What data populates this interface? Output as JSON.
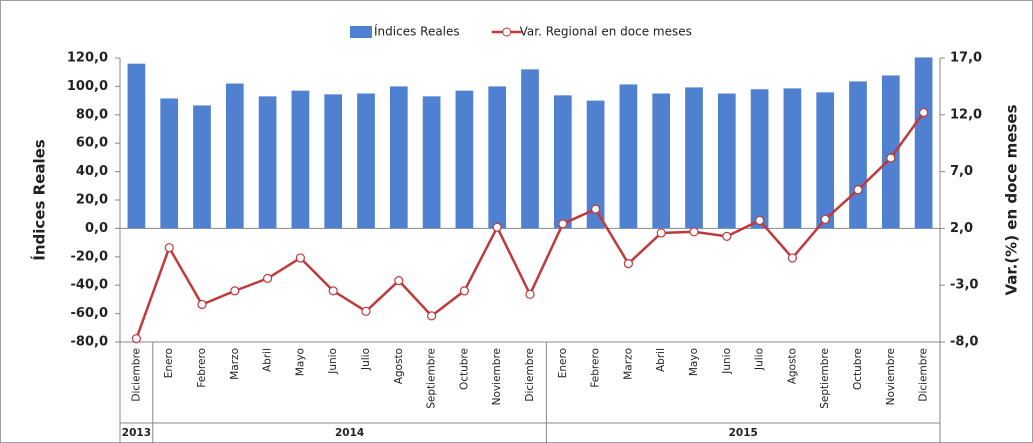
{
  "chart_data": {
    "type": "bar-line",
    "categories": [
      "Diciembre",
      "Enero",
      "Febrero",
      "Marzo",
      "Abril",
      "Mayo",
      "Junio",
      "Julio",
      "Agosto",
      "Septiembre",
      "Octubre",
      "Noviembre",
      "Diciembre",
      "Enero",
      "Febrero",
      "Marzo",
      "Abril",
      "Mayo",
      "Junio",
      "Julio",
      "Agosto",
      "Septiembre",
      "Octubre",
      "Noviembre",
      "Diciembre"
    ],
    "groups": [
      {
        "label": "2013",
        "count": 1
      },
      {
        "label": "2014",
        "count": 12
      },
      {
        "label": "2015",
        "count": 12
      }
    ],
    "series": [
      {
        "name": "Índices Reales",
        "type": "bar",
        "color": "#4f81d0",
        "values": [
          116,
          91.5,
          86.6,
          102,
          93,
          97,
          94.4,
          95,
          100,
          93,
          97,
          100,
          112,
          93.7,
          90,
          101.4,
          95,
          99.3,
          95,
          98,
          98.6,
          95.8,
          103.5,
          107.7,
          120.4
        ]
      },
      {
        "name": "Var. Regional en doce meses",
        "type": "line",
        "axis": "y2",
        "color": "#c0393b",
        "values": [
          -7.7,
          0.3,
          -4.7,
          -3.5,
          -2.4,
          -0.6,
          -3.5,
          -5.3,
          -2.6,
          -5.7,
          -3.5,
          2.1,
          -3.8,
          2.4,
          3.7,
          -1.1,
          1.6,
          1.7,
          1.3,
          2.7,
          -0.6,
          2.8,
          5.4,
          8.2,
          12.2
        ]
      }
    ],
    "ylabel": "Índices Reales",
    "y2label": "Var.(%) en doce meses",
    "ylim": [
      -80,
      120
    ],
    "yticks": [
      {
        "value": -80,
        "label": "-80,0"
      },
      {
        "value": -60,
        "label": "-60,0"
      },
      {
        "value": -40,
        "label": "-40,0"
      },
      {
        "value": -20,
        "label": "-20,0"
      },
      {
        "value": 0,
        "label": "0,0"
      },
      {
        "value": 20,
        "label": "20,0"
      },
      {
        "value": 40,
        "label": "40,0"
      },
      {
        "value": 60,
        "label": "60,0"
      },
      {
        "value": 80,
        "label": "80,0"
      },
      {
        "value": 100,
        "label": "100,0"
      },
      {
        "value": 120,
        "label": "120,0"
      }
    ],
    "y2lim": [
      -8,
      17
    ],
    "y2ticks": [
      {
        "value": -8,
        "label": "-8,0"
      },
      {
        "value": -3,
        "label": "-3,0"
      },
      {
        "value": 2,
        "label": "2,0"
      },
      {
        "value": 7,
        "label": "7,0"
      },
      {
        "value": 12,
        "label": "12,0"
      },
      {
        "value": 17,
        "label": "17,0"
      }
    ],
    "legend": "top"
  }
}
